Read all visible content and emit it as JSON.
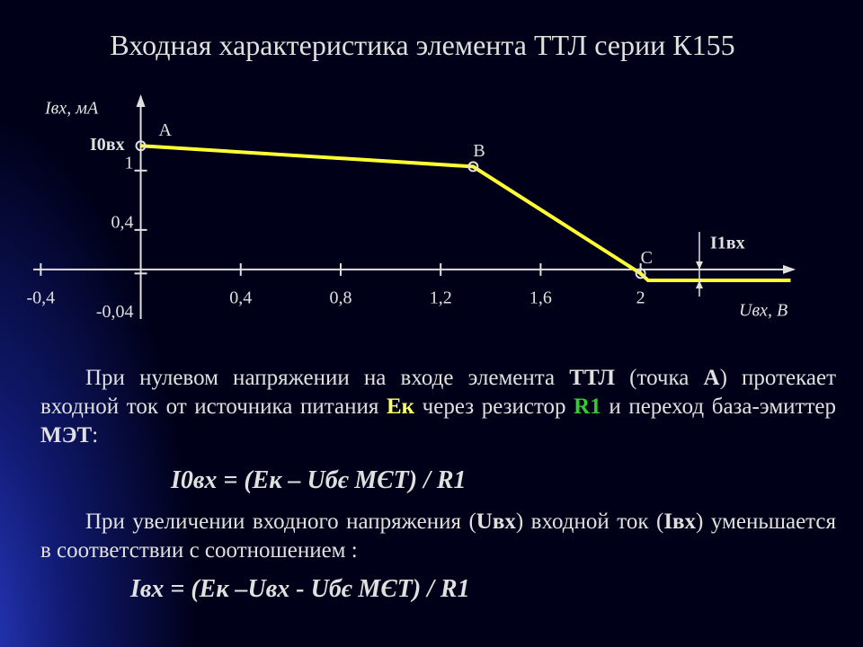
{
  "title": "Входная характеристика элемента ТТЛ серии К155",
  "chart_data": {
    "type": "line",
    "x_label": "Uвх, В",
    "y_label": "Iвх, мА",
    "x": [
      0,
      1.33,
      2,
      2.03,
      2.6
    ],
    "series": [
      {
        "color": "#ffff33",
        "values": [
          1.25,
          1.04,
          -0.04,
          -0.11,
          -0.11
        ]
      }
    ],
    "xlim": [
      -0.43,
      2.62
    ],
    "ylim": [
      -0.5,
      1.77
    ],
    "xticks": [
      {
        "value": -0.4,
        "label": "-0,4"
      },
      {
        "value": 0.4,
        "label": "0,4"
      },
      {
        "value": 0.8,
        "label": "0,8"
      },
      {
        "value": 1.2,
        "label": "1,2"
      },
      {
        "value": 1.6,
        "label": "1,6"
      },
      2
    ],
    "yticks": [
      1,
      {
        "value": 0.4,
        "label": "0,4"
      },
      {
        "value": -0.04,
        "label": "-0,04"
      }
    ],
    "point_labels": [
      "A",
      "B",
      "C"
    ],
    "annotations": [
      "I0вх",
      "I1вх"
    ]
  },
  "paragraphs": [
    [
      {
        "text": "При нулевом напряжении на входе элемента "
      },
      {
        "text": "ТТЛ",
        "bold": true
      },
      {
        "text": " (точка "
      },
      {
        "text": "А",
        "bold": true
      },
      {
        "text": ") протекает входной ток от источника питания "
      },
      {
        "text": "Ек",
        "bold": true,
        "color": "#ffff66"
      },
      {
        "text": " через резистор "
      },
      {
        "text": "R1",
        "bold": true,
        "color": "#33cc33"
      },
      {
        "text": " и переход база-эмиттер "
      },
      {
        "text": "МЭТ",
        "bold": true
      },
      {
        "text": ":"
      }
    ],
    [
      {
        "text": "При увеличении входного напряжения ("
      },
      {
        "text": "Uвх",
        "bold": true
      },
      {
        "text": ") входной ток ("
      },
      {
        "text": "Iвх",
        "bold": true
      },
      {
        "text": ") уменьшается в соответствии с соотношением :"
      }
    ]
  ],
  "formulas": [
    "I0вх = (Ек – Uбє МЄТ) / R1",
    "Iвх = (Ек –Uвх - Uбє МЄТ) / R1"
  ]
}
